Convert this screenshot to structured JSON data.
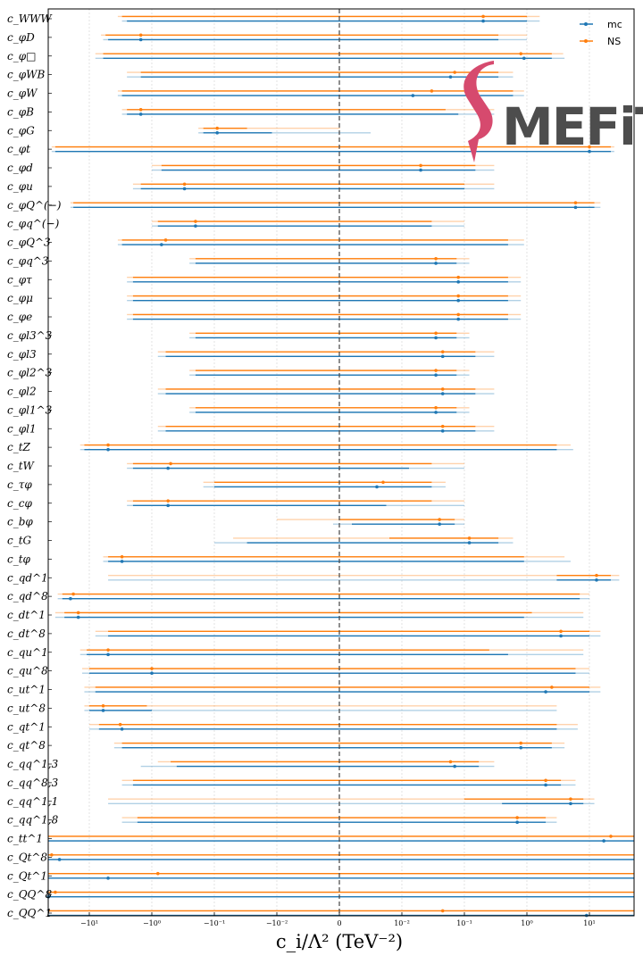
{
  "chart_data": {
    "type": "scatter",
    "xlabel": "c_i/Λ² (TeV⁻²)",
    "x_scale": "symlog",
    "x_linthresh": 0.01,
    "xlim": [
      -60,
      60
    ],
    "x_ticks": [
      {
        "v": -10,
        "label": "−10¹"
      },
      {
        "v": -1,
        "label": "−10⁰"
      },
      {
        "v": -0.1,
        "label": "−10⁻¹"
      },
      {
        "v": -0.01,
        "label": "−10⁻²"
      },
      {
        "v": 0,
        "label": "0"
      },
      {
        "v": 0.01,
        "label": "10⁻²"
      },
      {
        "v": 0.1,
        "label": "10⁻¹"
      },
      {
        "v": 1,
        "label": "10⁰"
      },
      {
        "v": 10,
        "label": "10¹"
      }
    ],
    "legend": {
      "placement": "top-right",
      "entries": [
        "mc",
        "NS"
      ]
    },
    "series_colors": {
      "mc": "#1f77b4",
      "NS": "#ff7f0e"
    },
    "logo_text": "MEFiT",
    "rows": [
      {
        "label": "c_WWW",
        "mc": {
          "m": 0.2,
          "l1": -2.5,
          "h1": 1.0,
          "l2": -3.0,
          "h2": 1.6
        },
        "ns": {
          "m": 0.2,
          "l1": -3.0,
          "h1": 1.0,
          "l2": -3.5,
          "h2": 1.6
        }
      },
      {
        "label": "c_φD",
        "mc": {
          "m": -1.5,
          "l1": -5.0,
          "h1": 0.35,
          "l2": -6.0,
          "h2": 1.0
        },
        "ns": {
          "m": -1.5,
          "l1": -5.5,
          "h1": 0.35,
          "l2": -6.5,
          "h2": 1.0
        }
      },
      {
        "label": "c_φ□",
        "mc": {
          "m": 0.9,
          "l1": -6.0,
          "h1": 2.5,
          "l2": -8.0,
          "h2": 4.0
        },
        "ns": {
          "m": 0.8,
          "l1": -6.0,
          "h1": 2.5,
          "l2": -8.0,
          "h2": 3.8
        }
      },
      {
        "label": "c_φWB",
        "mc": {
          "m": 0.06,
          "l1": -1.5,
          "h1": 0.35,
          "l2": -2.5,
          "h2": 0.6
        },
        "ns": {
          "m": 0.07,
          "l1": -1.5,
          "h1": 0.35,
          "l2": -2.5,
          "h2": 0.6
        }
      },
      {
        "label": "c_φW",
        "mc": {
          "m": 0.015,
          "l1": -3.0,
          "h1": 0.6,
          "l2": -3.5,
          "h2": 0.9
        },
        "ns": {
          "m": 0.03,
          "l1": -3.0,
          "h1": 0.6,
          "l2": -3.5,
          "h2": 0.9
        }
      },
      {
        "label": "c_φB",
        "mc": {
          "m": -1.5,
          "l1": -2.5,
          "h1": 0.08,
          "l2": -3.0,
          "h2": 0.3
        },
        "ns": {
          "m": -1.5,
          "l1": -2.5,
          "h1": 0.05,
          "l2": -3.0,
          "h2": 0.3
        }
      },
      {
        "label": "c_φG",
        "mc": {
          "m": -0.09,
          "l1": -0.15,
          "h1": -0.012,
          "l2": -0.18,
          "h2": 0.005
        },
        "ns": {
          "m": -0.09,
          "l1": -0.15,
          "h1": -0.03,
          "l2": -0.18,
          "h2": 0.0001
        }
      },
      {
        "label": "c_φt",
        "mc": {
          "m": 10,
          "l1": -35,
          "h1": 22,
          "l2": -40,
          "h2": 25
        },
        "ns": {
          "m": 10,
          "l1": -35,
          "h1": 22,
          "l2": -40,
          "h2": 25
        }
      },
      {
        "label": "c_φd",
        "mc": {
          "m": 0.02,
          "l1": -0.7,
          "h1": 0.15,
          "l2": -1.0,
          "h2": 0.3
        },
        "ns": {
          "m": 0.02,
          "l1": -0.7,
          "h1": 0.15,
          "l2": -1.0,
          "h2": 0.3
        }
      },
      {
        "label": "c_φu",
        "mc": {
          "m": -0.3,
          "l1": -1.5,
          "h1": 0.1,
          "l2": -2.0,
          "h2": 0.3
        },
        "ns": {
          "m": -0.3,
          "l1": -1.5,
          "h1": 0.1,
          "l2": -2.0,
          "h2": 0.3
        }
      },
      {
        "label": "c_φQ^(−)",
        "mc": {
          "m": 6,
          "l1": -18,
          "h1": 12,
          "l2": -20,
          "h2": 15
        },
        "ns": {
          "m": 6,
          "l1": -18,
          "h1": 12,
          "l2": -20,
          "h2": 15
        }
      },
      {
        "label": "c_φq^(−)",
        "mc": {
          "m": -0.2,
          "l1": -0.8,
          "h1": 0.03,
          "l2": -1.0,
          "h2": 0.1
        },
        "ns": {
          "m": -0.2,
          "l1": -0.8,
          "h1": 0.03,
          "l2": -1.0,
          "h2": 0.1
        }
      },
      {
        "label": "c_φQ^3",
        "mc": {
          "m": -0.7,
          "l1": -3.0,
          "h1": 0.5,
          "l2": -3.5,
          "h2": 0.9
        },
        "ns": {
          "m": -0.6,
          "l1": -3.0,
          "h1": 0.5,
          "l2": -3.5,
          "h2": 0.9
        }
      },
      {
        "label": "c_φq^3",
        "mc": {
          "m": 0.035,
          "l1": -0.2,
          "h1": 0.075,
          "l2": -0.25,
          "h2": 0.12
        },
        "ns": {
          "m": 0.035,
          "l1": -0.2,
          "h1": 0.075,
          "l2": -0.25,
          "h2": 0.12
        }
      },
      {
        "label": "c_φτ",
        "mc": {
          "m": 0.08,
          "l1": -2.0,
          "h1": 0.5,
          "l2": -2.5,
          "h2": 0.8
        },
        "ns": {
          "m": 0.08,
          "l1": -2.0,
          "h1": 0.5,
          "l2": -2.5,
          "h2": 0.8
        }
      },
      {
        "label": "c_φμ",
        "mc": {
          "m": 0.08,
          "l1": -2.0,
          "h1": 0.5,
          "l2": -2.5,
          "h2": 0.8
        },
        "ns": {
          "m": 0.08,
          "l1": -2.0,
          "h1": 0.5,
          "l2": -2.5,
          "h2": 0.8
        }
      },
      {
        "label": "c_φe",
        "mc": {
          "m": 0.08,
          "l1": -2.0,
          "h1": 0.5,
          "l2": -2.5,
          "h2": 0.8
        },
        "ns": {
          "m": 0.08,
          "l1": -2.0,
          "h1": 0.5,
          "l2": -2.5,
          "h2": 0.8
        }
      },
      {
        "label": "c_φl3^3",
        "mc": {
          "m": 0.035,
          "l1": -0.2,
          "h1": 0.075,
          "l2": -0.25,
          "h2": 0.12
        },
        "ns": {
          "m": 0.035,
          "l1": -0.2,
          "h1": 0.075,
          "l2": -0.25,
          "h2": 0.12
        }
      },
      {
        "label": "c_φl3",
        "mc": {
          "m": 0.045,
          "l1": -0.6,
          "h1": 0.15,
          "l2": -0.8,
          "h2": 0.3
        },
        "ns": {
          "m": 0.045,
          "l1": -0.6,
          "h1": 0.15,
          "l2": -0.8,
          "h2": 0.3
        }
      },
      {
        "label": "c_φl2^3",
        "mc": {
          "m": 0.035,
          "l1": -0.2,
          "h1": 0.075,
          "l2": -0.25,
          "h2": 0.12
        },
        "ns": {
          "m": 0.035,
          "l1": -0.2,
          "h1": 0.075,
          "l2": -0.25,
          "h2": 0.12
        }
      },
      {
        "label": "c_φl2",
        "mc": {
          "m": 0.045,
          "l1": -0.6,
          "h1": 0.15,
          "l2": -0.8,
          "h2": 0.3
        },
        "ns": {
          "m": 0.045,
          "l1": -0.6,
          "h1": 0.15,
          "l2": -0.8,
          "h2": 0.3
        }
      },
      {
        "label": "c_φl1^3",
        "mc": {
          "m": 0.035,
          "l1": -0.2,
          "h1": 0.075,
          "l2": -0.25,
          "h2": 0.12
        },
        "ns": {
          "m": 0.035,
          "l1": -0.2,
          "h1": 0.075,
          "l2": -0.25,
          "h2": 0.12
        }
      },
      {
        "label": "c_φl1",
        "mc": {
          "m": 0.045,
          "l1": -0.6,
          "h1": 0.15,
          "l2": -0.8,
          "h2": 0.3
        },
        "ns": {
          "m": 0.045,
          "l1": -0.6,
          "h1": 0.15,
          "l2": -0.8,
          "h2": 0.3
        }
      },
      {
        "label": "c_tZ",
        "mc": {
          "m": -5,
          "l1": -12,
          "h1": 3.0,
          "l2": -14,
          "h2": 5.5
        },
        "ns": {
          "m": -5,
          "l1": -12,
          "h1": 3.0,
          "l2": -14,
          "h2": 5.0
        }
      },
      {
        "label": "c_tW",
        "mc": {
          "m": -0.55,
          "l1": -2.0,
          "h1": 0.013,
          "l2": -2.5,
          "h2": 0.1
        },
        "ns": {
          "m": -0.5,
          "l1": -2.0,
          "h1": 0.03,
          "l2": -2.5,
          "h2": 0.1
        }
      },
      {
        "label": "c_τφ",
        "mc": {
          "m": 0.006,
          "l1": -0.1,
          "h1": 0.03,
          "l2": -0.15,
          "h2": 0.05
        },
        "ns": {
          "m": 0.007,
          "l1": -0.1,
          "h1": 0.03,
          "l2": -0.15,
          "h2": 0.05
        }
      },
      {
        "label": "c_cφ",
        "mc": {
          "m": -0.55,
          "l1": -2.0,
          "h1": 0.0075,
          "l2": -2.5,
          "h2": 0.1
        },
        "ns": {
          "m": -0.55,
          "l1": -2.0,
          "h1": 0.03,
          "l2": -2.5,
          "h2": 0.1
        }
      },
      {
        "label": "c_bφ",
        "mc": {
          "m": 0.04,
          "l1": 0.002,
          "h1": 0.07,
          "l2": -0.001,
          "h2": 0.1
        },
        "ns": {
          "m": 0.04,
          "l1": 0.0001,
          "h1": 0.07,
          "l2": -0.01,
          "h2": 0.1
        }
      },
      {
        "label": "c_tG",
        "mc": {
          "m": 0.12,
          "l1": -0.03,
          "h1": 0.35,
          "l2": -0.1,
          "h2": 0.6
        },
        "ns": {
          "m": 0.12,
          "l1": 0.008,
          "h1": 0.35,
          "l2": -0.05,
          "h2": 0.6
        }
      },
      {
        "label": "c_tφ",
        "mc": {
          "m": -3.0,
          "l1": -5.0,
          "h1": 0.9,
          "l2": -6.0,
          "h2": 5.0
        },
        "ns": {
          "m": -3.0,
          "l1": -5.0,
          "h1": 0.9,
          "l2": -6.0,
          "h2": 4.0
        }
      },
      {
        "label": "c_qd^1",
        "mc": {
          "m": 13,
          "l1": 3.0,
          "h1": 22,
          "l2": -5.0,
          "h2": 30
        },
        "ns": {
          "m": 13,
          "l1": 3.0,
          "h1": 22,
          "l2": -5.0,
          "h2": 30
        }
      },
      {
        "label": "c_qd^8",
        "mc": {
          "m": -20,
          "l1": -27,
          "h1": 7,
          "l2": -32,
          "h2": 10
        },
        "ns": {
          "m": -18,
          "l1": -27,
          "h1": 7,
          "l2": -32,
          "h2": 10
        }
      },
      {
        "label": "c_dt^1",
        "mc": {
          "m": -15,
          "l1": -25,
          "h1": 0.9,
          "l2": -35,
          "h2": 8
        },
        "ns": {
          "m": -15,
          "l1": -25,
          "h1": 1.2,
          "l2": -35,
          "h2": 8
        }
      },
      {
        "label": "c_dt^8",
        "mc": {
          "m": 3.5,
          "l1": -5.0,
          "h1": 10,
          "l2": -8.0,
          "h2": 15
        },
        "ns": {
          "m": 3.5,
          "l1": -5.0,
          "h1": 10,
          "l2": -8.0,
          "h2": 15
        }
      },
      {
        "label": "c_qu^1",
        "mc": {
          "m": -5.0,
          "l1": -11,
          "h1": 0.5,
          "l2": -14,
          "h2": 8
        },
        "ns": {
          "m": -5.0,
          "l1": -11,
          "h1": 0.25,
          "l2": -14,
          "h2": 8
        }
      },
      {
        "label": "c_qu^8",
        "mc": {
          "m": -1.0,
          "l1": -10,
          "h1": 6,
          "l2": -13,
          "h2": 10
        },
        "ns": {
          "m": -1.0,
          "l1": -10,
          "h1": 6,
          "l2": -13,
          "h2": 10
        }
      },
      {
        "label": "c_ut^1",
        "mc": {
          "m": 2.0,
          "l1": -8.0,
          "h1": 10,
          "l2": -12,
          "h2": 15
        },
        "ns": {
          "m": 2.5,
          "l1": -8.0,
          "h1": 10,
          "l2": -12,
          "h2": 15
        }
      },
      {
        "label": "c_ut^8",
        "mc": {
          "m": -6.0,
          "l1": -10,
          "h1": -1.0,
          "l2": -12,
          "h2": 3.0
        },
        "ns": {
          "m": -6.0,
          "l1": -10,
          "h1": -1.2,
          "l2": -12,
          "h2": 3.0
        }
      },
      {
        "label": "c_qt^1",
        "mc": {
          "m": -3.0,
          "l1": -7.0,
          "h1": 3.0,
          "l2": -10,
          "h2": 6.5
        },
        "ns": {
          "m": -3.2,
          "l1": -7.0,
          "h1": 3.0,
          "l2": -10,
          "h2": 6.5
        }
      },
      {
        "label": "c_qt^8",
        "mc": {
          "m": 0.8,
          "l1": -3.0,
          "h1": 2.5,
          "l2": -4.0,
          "h2": 4.0
        },
        "ns": {
          "m": 0.8,
          "l1": -3.0,
          "h1": 2.5,
          "l2": -4.0,
          "h2": 4.0
        }
      },
      {
        "label": "c_qq^1,3",
        "mc": {
          "m": 0.07,
          "l1": -0.4,
          "h1": 0.17,
          "l2": -1.5,
          "h2": 0.3
        },
        "ns": {
          "m": 0.06,
          "l1": -0.5,
          "h1": 0.17,
          "l2": -0.8,
          "h2": 0.3
        }
      },
      {
        "label": "c_qq^8,3",
        "mc": {
          "m": 2.0,
          "l1": -2.0,
          "h1": 3.5,
          "l2": -3.0,
          "h2": 6.0
        },
        "ns": {
          "m": 2.0,
          "l1": -2.0,
          "h1": 3.5,
          "l2": -3.0,
          "h2": 6.0
        }
      },
      {
        "label": "c_qq^1,1",
        "mc": {
          "m": 5.0,
          "l1": 0.4,
          "h1": 8.0,
          "l2": -5.0,
          "h2": 12
        },
        "ns": {
          "m": 5.0,
          "l1": 0.1,
          "h1": 8.0,
          "l2": -5.0,
          "h2": 12
        }
      },
      {
        "label": "c_qq^1,8",
        "mc": {
          "m": 0.7,
          "l1": -1.7,
          "h1": 2.0,
          "l2": -3.0,
          "h2": 3.0
        },
        "ns": {
          "m": 0.7,
          "l1": -1.7,
          "h1": 2.0,
          "l2": -3.0,
          "h2": 3.0
        }
      },
      {
        "label": "c_tt^1",
        "mc": {
          "m": 17,
          "l1": -60,
          "h1": 60,
          "l2": -60,
          "h2": 60
        },
        "ns": {
          "m": 22,
          "l1": -60,
          "h1": 60,
          "l2": -60,
          "h2": 60
        }
      },
      {
        "label": "c_Qt^8",
        "mc": {
          "m": -30,
          "l1": -60,
          "h1": 60,
          "l2": -60,
          "h2": 60
        },
        "ns": {
          "m": -40,
          "l1": -60,
          "h1": 60,
          "l2": -60,
          "h2": 60
        }
      },
      {
        "label": "c_Qt^1",
        "mc": {
          "m": -5.0,
          "l1": -60,
          "h1": 60,
          "l2": -60,
          "h2": 60
        },
        "ns": {
          "m": -0.8,
          "l1": -60,
          "h1": 60,
          "l2": -60,
          "h2": 60
        }
      },
      {
        "label": "c_QQ^8",
        "mc": {
          "m": -45,
          "l1": -60,
          "h1": 60,
          "l2": -60,
          "h2": 60
        },
        "ns": {
          "m": -35,
          "l1": -60,
          "h1": 60,
          "l2": -60,
          "h2": 60
        }
      },
      {
        "label": "c_QQ^1",
        "mc": {
          "m": 9.0,
          "l1": -60,
          "h1": 60,
          "l2": -60,
          "h2": 60
        },
        "ns": {
          "m": 0.045,
          "l1": -60,
          "h1": 60,
          "l2": -60,
          "h2": 60
        }
      }
    ]
  }
}
